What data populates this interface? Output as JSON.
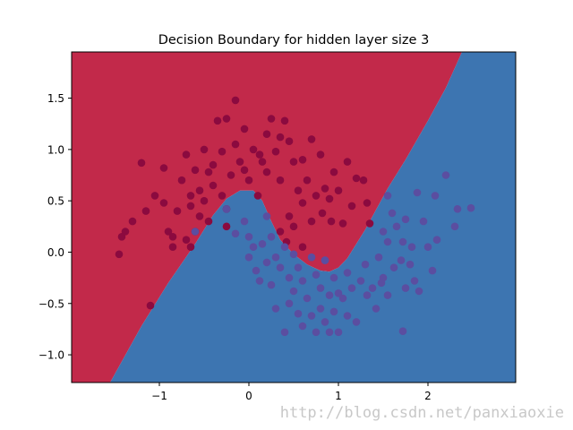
{
  "chart_data": {
    "type": "scatter",
    "title": "Decision Boundary for hidden layer size 3",
    "xlabel": "",
    "ylabel": "",
    "xlim": [
      -1.98,
      2.98
    ],
    "ylim": [
      -1.27,
      1.95
    ],
    "x_ticks": [
      -1,
      0,
      1,
      2
    ],
    "x_tick_labels": [
      "−1",
      "0",
      "1",
      "2"
    ],
    "y_ticks": [
      -1.0,
      -0.5,
      0.0,
      0.5,
      1.0,
      1.5
    ],
    "y_tick_labels": [
      "−1.0",
      "−0.5",
      "0.0",
      "0.5",
      "1.0",
      "1.5"
    ],
    "grid": false,
    "regions": [
      {
        "class": 0,
        "color": "#c2294a"
      },
      {
        "class": 1,
        "color": "#3d75b1"
      }
    ],
    "boundary": [
      [
        -1.55,
        -1.27
      ],
      [
        -1.2,
        -0.72
      ],
      [
        -0.9,
        -0.3
      ],
      [
        -0.6,
        0.08
      ],
      [
        -0.4,
        0.36
      ],
      [
        -0.25,
        0.52
      ],
      [
        -0.1,
        0.6
      ],
      [
        0.05,
        0.6
      ],
      [
        0.15,
        0.5
      ],
      [
        0.25,
        0.3
      ],
      [
        0.35,
        0.12
      ],
      [
        0.5,
        -0.02
      ],
      [
        0.65,
        -0.12
      ],
      [
        0.8,
        -0.18
      ],
      [
        0.9,
        -0.19
      ],
      [
        1.0,
        -0.15
      ],
      [
        1.1,
        -0.06
      ],
      [
        1.2,
        0.08
      ],
      [
        1.3,
        0.22
      ],
      [
        1.4,
        0.38
      ],
      [
        1.55,
        0.62
      ],
      [
        1.75,
        0.9
      ],
      [
        2.0,
        1.28
      ],
      [
        2.2,
        1.6
      ],
      [
        2.38,
        1.95
      ]
    ],
    "series": [
      {
        "class": 0,
        "color": "#8b0a3f",
        "points": [
          [
            -1.45,
            -0.02
          ],
          [
            -1.42,
            0.15
          ],
          [
            -1.38,
            0.2
          ],
          [
            -1.3,
            0.3
          ],
          [
            -1.15,
            0.4
          ],
          [
            -1.2,
            0.87
          ],
          [
            -1.05,
            0.55
          ],
          [
            -0.95,
            0.82
          ],
          [
            -0.95,
            0.48
          ],
          [
            -0.9,
            0.2
          ],
          [
            -0.85,
            0.05
          ],
          [
            -0.85,
            0.15
          ],
          [
            -0.8,
            0.4
          ],
          [
            -0.75,
            0.7
          ],
          [
            -0.7,
            0.95
          ],
          [
            -0.7,
            0.12
          ],
          [
            -0.65,
            0.55
          ],
          [
            -0.65,
            0.45
          ],
          [
            -0.6,
            0.2
          ],
          [
            -0.6,
            0.8
          ],
          [
            -0.55,
            0.35
          ],
          [
            -0.55,
            0.6
          ],
          [
            -0.5,
            1.0
          ],
          [
            -0.5,
            0.5
          ],
          [
            -0.45,
            0.3
          ],
          [
            -0.45,
            0.78
          ],
          [
            -0.4,
            0.85
          ],
          [
            -0.4,
            0.65
          ],
          [
            -0.35,
            1.28
          ],
          [
            -0.3,
            0.55
          ],
          [
            -0.3,
            0.98
          ],
          [
            -0.25,
            1.3
          ],
          [
            -0.25,
            0.42
          ],
          [
            -0.2,
            0.75
          ],
          [
            -0.15,
            1.05
          ],
          [
            -0.15,
            1.48
          ],
          [
            -0.1,
            0.88
          ],
          [
            -0.05,
            0.8
          ],
          [
            -0.05,
            1.2
          ],
          [
            0.0,
            0.7
          ],
          [
            0.05,
            1.0
          ],
          [
            0.1,
            0.55
          ],
          [
            0.12,
            0.95
          ],
          [
            0.15,
            0.88
          ],
          [
            0.2,
            0.78
          ],
          [
            0.2,
            1.15
          ],
          [
            0.25,
            1.3
          ],
          [
            0.3,
            0.98
          ],
          [
            0.35,
            1.12
          ],
          [
            0.35,
            0.7
          ],
          [
            0.4,
            1.28
          ],
          [
            0.45,
            1.08
          ],
          [
            0.45,
            0.35
          ],
          [
            0.5,
            0.88
          ],
          [
            0.55,
            0.6
          ],
          [
            0.6,
            0.9
          ],
          [
            0.6,
            0.48
          ],
          [
            0.65,
            0.7
          ],
          [
            0.7,
            1.1
          ],
          [
            0.7,
            0.3
          ],
          [
            0.75,
            0.55
          ],
          [
            0.8,
            0.95
          ],
          [
            0.82,
            0.38
          ],
          [
            0.85,
            0.62
          ],
          [
            0.9,
            0.52
          ],
          [
            0.92,
            0.3
          ],
          [
            0.95,
            0.78
          ],
          [
            1.0,
            0.6
          ],
          [
            1.05,
            0.28
          ],
          [
            1.1,
            0.88
          ],
          [
            1.15,
            0.45
          ],
          [
            1.2,
            0.72
          ],
          [
            1.28,
            0.7
          ],
          [
            1.32,
            0.48
          ],
          [
            1.35,
            0.28
          ],
          [
            0.35,
            0.2
          ],
          [
            0.42,
            0.1
          ],
          [
            0.5,
            0.25
          ],
          [
            0.6,
            0.05
          ],
          [
            -0.25,
            0.25
          ],
          [
            -0.65,
            0.05
          ],
          [
            -1.1,
            -0.52
          ]
        ]
      },
      {
        "class": 1,
        "color": "#5b4ea0",
        "points": [
          [
            -0.6,
            0.2
          ],
          [
            -0.25,
            0.42
          ],
          [
            -0.15,
            0.18
          ],
          [
            -0.05,
            0.3
          ],
          [
            0.0,
            0.15
          ],
          [
            0.0,
            -0.05
          ],
          [
            0.05,
            0.05
          ],
          [
            0.08,
            -0.18
          ],
          [
            0.12,
            -0.28
          ],
          [
            0.15,
            0.08
          ],
          [
            0.2,
            -0.1
          ],
          [
            0.2,
            0.35
          ],
          [
            0.25,
            -0.32
          ],
          [
            0.25,
            0.15
          ],
          [
            0.3,
            -0.05
          ],
          [
            0.3,
            -0.55
          ],
          [
            0.35,
            -0.15
          ],
          [
            0.4,
            0.05
          ],
          [
            0.4,
            -0.78
          ],
          [
            0.45,
            -0.25
          ],
          [
            0.45,
            -0.5
          ],
          [
            0.5,
            -0.38
          ],
          [
            0.5,
            -0.02
          ],
          [
            0.55,
            -0.6
          ],
          [
            0.55,
            -0.15
          ],
          [
            0.6,
            -0.28
          ],
          [
            0.6,
            -0.72
          ],
          [
            0.65,
            -0.45
          ],
          [
            0.7,
            -0.05
          ],
          [
            0.7,
            -0.62
          ],
          [
            0.75,
            -0.22
          ],
          [
            0.75,
            -0.78
          ],
          [
            0.8,
            -0.35
          ],
          [
            0.8,
            -0.55
          ],
          [
            0.85,
            -0.08
          ],
          [
            0.85,
            -0.68
          ],
          [
            0.9,
            -0.42
          ],
          [
            0.9,
            -0.78
          ],
          [
            0.95,
            -0.25
          ],
          [
            0.95,
            -0.58
          ],
          [
            1.0,
            -0.4
          ],
          [
            1.0,
            -0.78
          ],
          [
            1.05,
            -0.45
          ],
          [
            1.1,
            -0.2
          ],
          [
            1.1,
            -0.62
          ],
          [
            1.15,
            -0.35
          ],
          [
            1.2,
            -0.68
          ],
          [
            1.25,
            -0.28
          ],
          [
            1.3,
            -0.12
          ],
          [
            1.32,
            -0.42
          ],
          [
            1.38,
            -0.35
          ],
          [
            1.42,
            -0.55
          ],
          [
            1.45,
            -0.05
          ],
          [
            1.5,
            -0.25
          ],
          [
            1.5,
            0.2
          ],
          [
            1.55,
            0.1
          ],
          [
            1.55,
            -0.42
          ],
          [
            1.6,
            0.38
          ],
          [
            1.62,
            -0.15
          ],
          [
            1.65,
            0.25
          ],
          [
            1.7,
            -0.08
          ],
          [
            1.72,
            0.1
          ],
          [
            1.75,
            -0.35
          ],
          [
            1.75,
            0.32
          ],
          [
            1.8,
            -0.12
          ],
          [
            1.82,
            0.05
          ],
          [
            1.85,
            -0.28
          ],
          [
            1.88,
            0.58
          ],
          [
            1.9,
            -0.38
          ],
          [
            1.95,
            0.3
          ],
          [
            2.0,
            0.05
          ],
          [
            2.05,
            -0.18
          ],
          [
            2.08,
            0.55
          ],
          [
            2.1,
            0.12
          ],
          [
            2.2,
            0.75
          ],
          [
            2.3,
            0.25
          ],
          [
            2.33,
            0.42
          ],
          [
            2.48,
            0.43
          ],
          [
            1.72,
            -0.77
          ],
          [
            1.55,
            0.55
          ],
          [
            0.85,
            -0.08
          ],
          [
            1.48,
            -0.3
          ]
        ]
      }
    ],
    "watermark": "http://blog.csdn.net/panxiaoxie"
  }
}
